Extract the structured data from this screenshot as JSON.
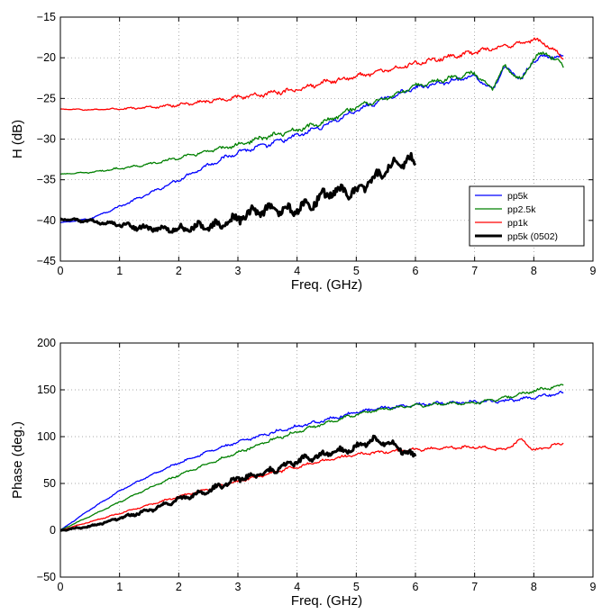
{
  "chart_data": [
    {
      "type": "line",
      "xlabel": "Freq. (GHz)",
      "ylabel": "H (dB)",
      "xlim": [
        0,
        9
      ],
      "ylim": [
        -45,
        -15
      ],
      "xticks": [
        "0",
        "1",
        "2",
        "3",
        "4",
        "5",
        "6",
        "7",
        "8",
        "9"
      ],
      "yticks": [
        "−45",
        "−40",
        "−35",
        "−30",
        "−25",
        "−20",
        "−15"
      ],
      "grid": true,
      "legend_position": "bottom-right",
      "series": [
        {
          "name": "pp5k",
          "color": "#0000ff",
          "x": [
            0,
            0.5,
            1,
            1.5,
            2,
            2.5,
            3,
            3.5,
            4,
            4.5,
            5,
            5.5,
            6,
            6.5,
            7,
            7.3,
            7.5,
            7.8,
            8,
            8.2,
            8.5
          ],
          "y": [
            -40.3,
            -39.8,
            -38.3,
            -36.7,
            -35.0,
            -33.2,
            -31.6,
            -30.7,
            -29.6,
            -28.2,
            -26.5,
            -25.0,
            -23.7,
            -23.0,
            -22.2,
            -24.0,
            -21.2,
            -22.6,
            -20.3,
            -19.8,
            -20.0
          ]
        },
        {
          "name": "pp2.5k",
          "color": "#008000",
          "x": [
            0,
            0.5,
            1,
            1.5,
            2,
            2.5,
            3,
            3.5,
            4,
            4.5,
            5,
            5.5,
            6,
            6.5,
            7,
            7.3,
            7.5,
            7.8,
            8,
            8.2,
            8.5
          ],
          "y": [
            -34.3,
            -34.1,
            -33.6,
            -33.1,
            -32.3,
            -31.5,
            -30.7,
            -29.7,
            -28.9,
            -27.8,
            -26.0,
            -25.0,
            -23.5,
            -22.6,
            -21.9,
            -23.8,
            -21.0,
            -22.8,
            -20.0,
            -19.4,
            -21.0
          ]
        },
        {
          "name": "pp1k",
          "color": "#ff0000",
          "x": [
            0,
            0.5,
            1,
            1.5,
            2,
            2.5,
            3,
            3.5,
            4,
            4.5,
            5,
            5.5,
            6,
            6.5,
            7,
            7.5,
            7.8,
            8,
            8.2,
            8.5
          ],
          "y": [
            -26.3,
            -26.4,
            -26.3,
            -26.1,
            -25.8,
            -25.3,
            -24.9,
            -24.4,
            -23.9,
            -23.0,
            -22.3,
            -21.5,
            -20.7,
            -20.0,
            -19.3,
            -18.6,
            -18.2,
            -17.8,
            -18.3,
            -20.0
          ]
        },
        {
          "name": "pp5k (0502)",
          "color": "#000000",
          "x": [
            0,
            0.5,
            1,
            1.5,
            2,
            2.3,
            2.6,
            3,
            3.3,
            3.6,
            4,
            4.3,
            4.6,
            5,
            5.3,
            5.6,
            5.9,
            6
          ],
          "y": [
            -39.8,
            -40.1,
            -40.5,
            -41.0,
            -41.1,
            -40.8,
            -40.7,
            -39.8,
            -38.9,
            -38.7,
            -38.6,
            -37.7,
            -36.3,
            -36.5,
            -34.8,
            -33.3,
            -32.5,
            -33.0
          ]
        }
      ]
    },
    {
      "type": "line",
      "xlabel": "Freq. (GHz)",
      "ylabel": "Phase (deg.)",
      "xlim": [
        0,
        9
      ],
      "ylim": [
        -50,
        200
      ],
      "xticks": [
        "0",
        "1",
        "2",
        "3",
        "4",
        "5",
        "6",
        "7",
        "8",
        "9"
      ],
      "yticks": [
        "−50",
        "0",
        "50",
        "100",
        "150",
        "200"
      ],
      "grid": true,
      "series": [
        {
          "name": "pp5k",
          "color": "#0000ff",
          "x": [
            0,
            0.5,
            1,
            1.5,
            2,
            2.5,
            3,
            3.5,
            4,
            4.5,
            5,
            5.5,
            6,
            6.5,
            7,
            7.5,
            8,
            8.5
          ],
          "y": [
            0,
            22,
            42,
            58,
            72,
            84,
            94,
            103,
            111,
            118,
            126,
            131,
            134,
            136,
            137,
            138,
            142,
            147
          ]
        },
        {
          "name": "pp2.5k",
          "color": "#008000",
          "x": [
            0,
            0.5,
            1,
            1.5,
            2,
            2.5,
            3,
            3.5,
            4,
            4.5,
            5,
            5.5,
            6,
            6.5,
            7,
            7.5,
            8,
            8.5
          ],
          "y": [
            0,
            15,
            30,
            45,
            59,
            71,
            83,
            95,
            105,
            115,
            124,
            130,
            133,
            135,
            136,
            141,
            149,
            155
          ]
        },
        {
          "name": "pp1k",
          "color": "#ff0000",
          "x": [
            0,
            0.5,
            1,
            1.5,
            2,
            2.5,
            3,
            3.5,
            4,
            4.5,
            5,
            5.5,
            6,
            6.5,
            7,
            7.5,
            7.8,
            8,
            8.5
          ],
          "y": [
            0,
            9,
            18,
            27,
            36,
            44,
            52,
            60,
            68,
            75,
            81,
            84,
            86,
            88,
            89,
            86,
            97,
            85,
            93
          ]
        },
        {
          "name": "pp5k (0502)",
          "color": "#000000",
          "x": [
            0,
            0.5,
            1,
            1.5,
            2,
            2.5,
            3,
            3.5,
            4,
            4.5,
            5,
            5.3,
            5.6,
            6
          ],
          "y": [
            0,
            4,
            13,
            21,
            33,
            42,
            55,
            62,
            74,
            82,
            88,
            97,
            92,
            78
          ]
        }
      ]
    }
  ]
}
